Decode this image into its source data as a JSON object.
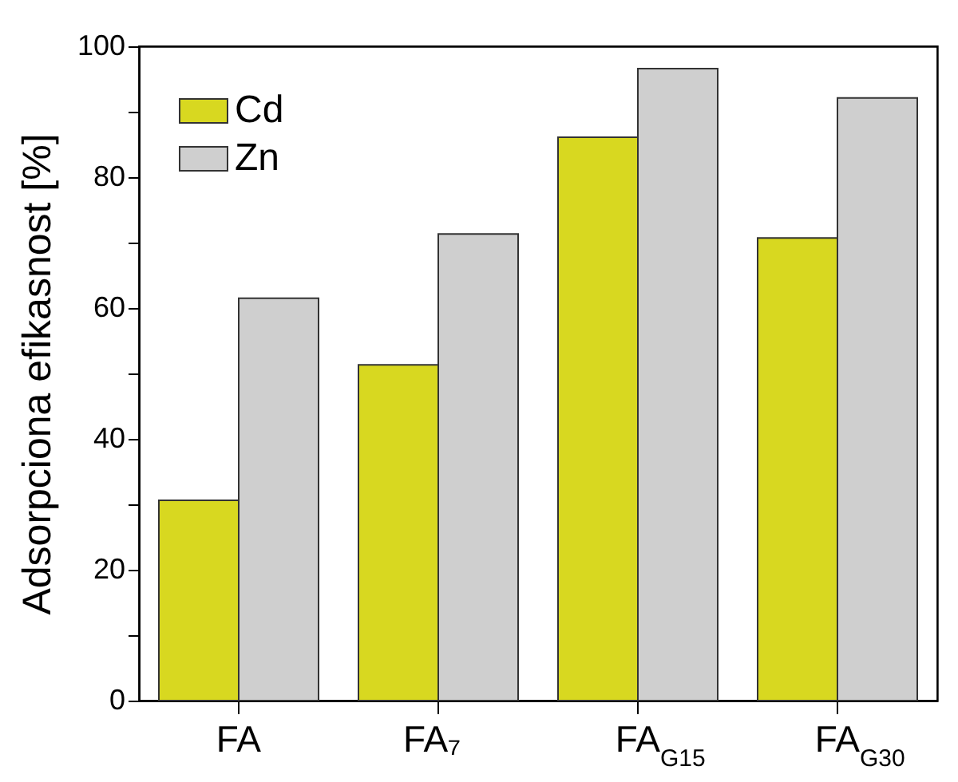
{
  "chart_data": {
    "type": "bar",
    "ylabel": "Adsorpciona efikasnost [%]",
    "categories": [
      "FA",
      "FA₇",
      "FA$_{G15}$",
      "FA$_{G30}$"
    ],
    "series": [
      {
        "name": "Cd",
        "color": "#d8d820",
        "values": [
          30.6,
          51.3,
          86.1,
          70.7
        ]
      },
      {
        "name": "Zn",
        "color": "#cfcfcf",
        "values": [
          61.5,
          71.3,
          96.6,
          92.1
        ]
      }
    ],
    "ylim": [
      0,
      100
    ],
    "yticks": [
      0,
      {
        "value": 10,
        "label": null
      },
      20,
      {
        "value": 30,
        "label": null
      },
      40,
      {
        "value": 50,
        "label": null
      },
      60,
      {
        "value": 70,
        "label": null
      },
      80,
      {
        "value": 90,
        "label": null
      },
      100
    ],
    "grid": false,
    "legend": "top left"
  }
}
